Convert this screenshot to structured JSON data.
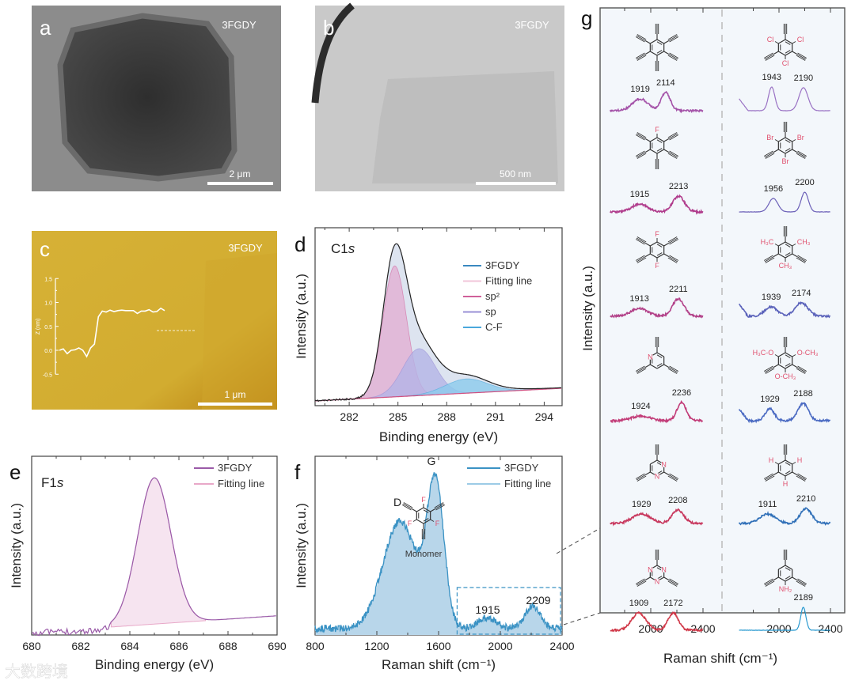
{
  "images": [
    {
      "label": "a",
      "sample": "3FGDY",
      "scale_bar": "2 μm"
    },
    {
      "label": "b",
      "sample": "3FGDY",
      "scale_bar": "500 nm"
    },
    {
      "label": "c",
      "sample": "3FGDY",
      "scale_bar": "1 μm"
    }
  ],
  "watermark": "大数跨境",
  "chart_data": [
    {
      "panel": "c",
      "type": "line",
      "ylabel": "Z (nm)",
      "ylim": [
        -0.5,
        1.5
      ],
      "yticks": [
        "1.5",
        "1.0",
        "0.5",
        "0.0",
        "-0.5"
      ],
      "z_profile_nm": [
        0,
        0.03,
        -0.07,
        0,
        0.01,
        0.05,
        0,
        -0.13,
        0.05,
        0.13,
        0.7,
        0.82,
        0.8,
        0.84,
        0.81,
        0.83,
        0.84,
        0.83,
        0.83,
        0.83,
        0.77,
        0.82,
        0.82,
        0.85,
        0.8,
        0.81,
        0.88,
        0.83
      ]
    },
    {
      "panel": "d",
      "label": "d",
      "type": "area",
      "title": "C1",
      "title_italic": "s",
      "xlabel": "Binding energy (eV)",
      "ylabel": "Intensity (a.u.)",
      "xlim": [
        279.9,
        295.1
      ],
      "xticks": [
        282,
        285,
        288,
        291,
        294
      ],
      "legend": [
        {
          "name": "3FGDY",
          "color": "#3a88c0"
        },
        {
          "name": "Fitting line",
          "color": "#f2c6da"
        },
        {
          "name": "sp²",
          "color": "#d0609a"
        },
        {
          "name": "sp",
          "color": "#9a90d6"
        },
        {
          "name": "C-F",
          "color": "#4aa8dc"
        }
      ],
      "components": [
        {
          "name": "sp²",
          "center": 284.8,
          "sigma": 0.72,
          "height": 0.92,
          "fill": "#e2afd3"
        },
        {
          "name": "sp",
          "center": 286.3,
          "sigma": 1.0,
          "height": 0.33,
          "fill": "#b4b4e6"
        },
        {
          "name": "C-F",
          "center": 289.2,
          "sigma": 1.3,
          "height": 0.1,
          "fill": "#8ccaec"
        }
      ]
    },
    {
      "panel": "e",
      "label": "e",
      "type": "area",
      "title": "F1",
      "title_italic": "s",
      "xlabel": "Binding energy (eV)",
      "ylabel": "Intensity (a.u.)",
      "xlim": [
        680,
        690
      ],
      "xticks": [
        680,
        682,
        684,
        686,
        688,
        690
      ],
      "legend": [
        {
          "name": "3FGDY",
          "color": "#9a5aa8"
        },
        {
          "name": "Fitting line",
          "color": "#e8a8c8"
        }
      ],
      "peak": {
        "center": 685.0,
        "sigma": 0.68,
        "height": 1.0
      }
    },
    {
      "panel": "f",
      "label": "f",
      "type": "area",
      "xlabel": "Raman shift (cm⁻¹)",
      "ylabel": "Intensity (a.u.)",
      "xlim": [
        800,
        2400
      ],
      "xticks": [
        800,
        1200,
        1600,
        2000,
        2400
      ],
      "legend": [
        {
          "name": "3FGDY",
          "color": "#3a92c4"
        },
        {
          "name": "Fitting line",
          "color": "#9ccbe6"
        }
      ],
      "peaks": [
        {
          "label": "D",
          "center": 1350,
          "sigma": 110,
          "height": 0.68
        },
        {
          "label": "G",
          "center": 1580,
          "sigma": 55,
          "height": 0.9
        },
        {
          "label": "1915",
          "center": 1915,
          "sigma": 60,
          "height": 0.07
        },
        {
          "label": "2209",
          "center": 2209,
          "sigma": 50,
          "height": 0.14
        }
      ],
      "monomer": {
        "label": "Monomer",
        "alkyne_positions": [
          1,
          3,
          5
        ],
        "labels": [
          {
            "pos": 0,
            "text": "F"
          },
          {
            "pos": 2,
            "text": "F"
          },
          {
            "pos": 4,
            "text": "F"
          }
        ],
        "ring_atoms": []
      }
    },
    {
      "panel": "g",
      "label": "g",
      "type": "line",
      "xlabel": "Raman shift (cm⁻¹)",
      "ylabel": "Intensity (a.u.)",
      "xlim": [
        1700,
        2400
      ],
      "xticks": [
        2000,
        2400
      ],
      "spectra": [
        {
          "column": "left",
          "peaks": [
            1919,
            2114
          ],
          "heights": [
            0.5,
            0.77
          ],
          "widths": [
            60,
            35
          ],
          "color": "#a452a8",
          "molecule": {
            "alkyne_positions": [
              0,
              1,
              2,
              3,
              4,
              5
            ],
            "labels": [],
            "ring_atoms": []
          }
        },
        {
          "column": "right",
          "peaks": [
            1943,
            2190
          ],
          "heights": [
            1.0,
            0.97
          ],
          "widths": [
            25,
            35
          ],
          "color": "#9a72c4",
          "molecule": {
            "alkyne_positions": [
              0,
              2,
              4
            ],
            "labels": [
              {
                "pos": 1,
                "text": "Cl"
              },
              {
                "pos": 3,
                "text": "Cl"
              },
              {
                "pos": 5,
                "text": "Cl"
              }
            ],
            "ring_atoms": []
          }
        },
        {
          "column": "left",
          "peaks": [
            1915,
            2213
          ],
          "heights": [
            0.33,
            0.67
          ],
          "widths": [
            60,
            45
          ],
          "color": "#b03c8c",
          "molecule": {
            "alkyne_positions": [
              1,
              2,
              3,
              4,
              5
            ],
            "labels": [
              {
                "pos": 0,
                "text": "F"
              }
            ],
            "ring_atoms": []
          }
        },
        {
          "column": "right",
          "peaks": [
            1956,
            2200
          ],
          "heights": [
            0.57,
            0.83
          ],
          "widths": [
            35,
            28
          ],
          "color": "#6c60b8",
          "molecule": {
            "alkyne_positions": [
              0,
              2,
              4
            ],
            "labels": [
              {
                "pos": 1,
                "text": "Br"
              },
              {
                "pos": 3,
                "text": "Br"
              },
              {
                "pos": 5,
                "text": "Br"
              }
            ],
            "ring_atoms": []
          }
        },
        {
          "column": "left",
          "peaks": [
            1913,
            2211
          ],
          "heights": [
            0.33,
            0.73
          ],
          "widths": [
            65,
            45
          ],
          "color": "#b24088",
          "molecule": {
            "alkyne_positions": [
              1,
              2,
              4,
              5
            ],
            "labels": [
              {
                "pos": 0,
                "text": "F"
              },
              {
                "pos": 3,
                "text": "F"
              }
            ],
            "ring_atoms": []
          }
        },
        {
          "column": "right",
          "peaks": [
            1939,
            2174
          ],
          "heights": [
            0.4,
            0.57
          ],
          "widths": [
            50,
            50
          ],
          "color": "#5a62ba",
          "molecule": {
            "alkyne_positions": [
              0,
              2,
              4
            ],
            "labels": [
              {
                "pos": 5,
                "text": "H₃C"
              },
              {
                "pos": 1,
                "text": "CH₃"
              },
              {
                "pos": 3,
                "text": "CH₃"
              }
            ],
            "ring_atoms": []
          }
        },
        {
          "column": "left",
          "peaks": [
            1924,
            2236
          ],
          "heights": [
            0.2,
            0.77
          ],
          "widths": [
            70,
            35
          ],
          "color": "#c23c78",
          "molecule": {
            "alkyne_positions": [
              0,
              2,
              4
            ],
            "labels": [],
            "ring_atoms": [
              {
                "pos": 5,
                "text": "N"
              }
            ]
          }
        },
        {
          "column": "right",
          "peaks": [
            1929,
            2188
          ],
          "heights": [
            0.5,
            0.73
          ],
          "widths": [
            35,
            40
          ],
          "color": "#4a6ac2",
          "molecule": {
            "alkyne_positions": [
              0,
              2,
              4
            ],
            "labels": [
              {
                "pos": 5,
                "text": "H₃C-O"
              },
              {
                "pos": 1,
                "text": "O-CH₃"
              },
              {
                "pos": 3,
                "text": "O-CH₃"
              }
            ],
            "ring_atoms": []
          }
        },
        {
          "column": "left",
          "peaks": [
            1929,
            2208
          ],
          "heights": [
            0.4,
            0.57
          ],
          "widths": [
            70,
            45
          ],
          "color": "#c8385e",
          "molecule": {
            "alkyne_positions": [
              0,
              2,
              4
            ],
            "labels": [],
            "ring_atoms": [
              {
                "pos": 1,
                "text": "N"
              },
              {
                "pos": 3,
                "text": "N"
              }
            ]
          }
        },
        {
          "column": "right",
          "peaks": [
            1911,
            2210
          ],
          "heights": [
            0.4,
            0.63
          ],
          "widths": [
            60,
            45
          ],
          "color": "#3070b8",
          "molecule": {
            "alkyne_positions": [
              0,
              2,
              4
            ],
            "labels": [
              {
                "pos": 1,
                "text": "H"
              },
              {
                "pos": 3,
                "text": "H"
              },
              {
                "pos": 5,
                "text": "H"
              }
            ],
            "ring_atoms": []
          }
        },
        {
          "column": "left",
          "peaks": [
            1909,
            2172
          ],
          "heights": [
            0.73,
            0.73
          ],
          "widths": [
            55,
            40
          ],
          "color": "#d03848",
          "molecule": {
            "alkyne_positions": [
              0,
              2,
              4
            ],
            "labels": [],
            "ring_atoms": [
              {
                "pos": 1,
                "text": "N"
              },
              {
                "pos": 3,
                "text": "N"
              },
              {
                "pos": 5,
                "text": "N"
              }
            ]
          }
        },
        {
          "column": "right",
          "peaks": [
            2189
          ],
          "heights": [
            0.97
          ],
          "widths": [
            20
          ],
          "color": "#2a9ad0",
          "molecule": {
            "alkyne_positions": [
              0,
              2,
              4
            ],
            "labels": [
              {
                "pos": 3,
                "text": "NH₂"
              }
            ],
            "ring_atoms": []
          }
        }
      ]
    }
  ]
}
